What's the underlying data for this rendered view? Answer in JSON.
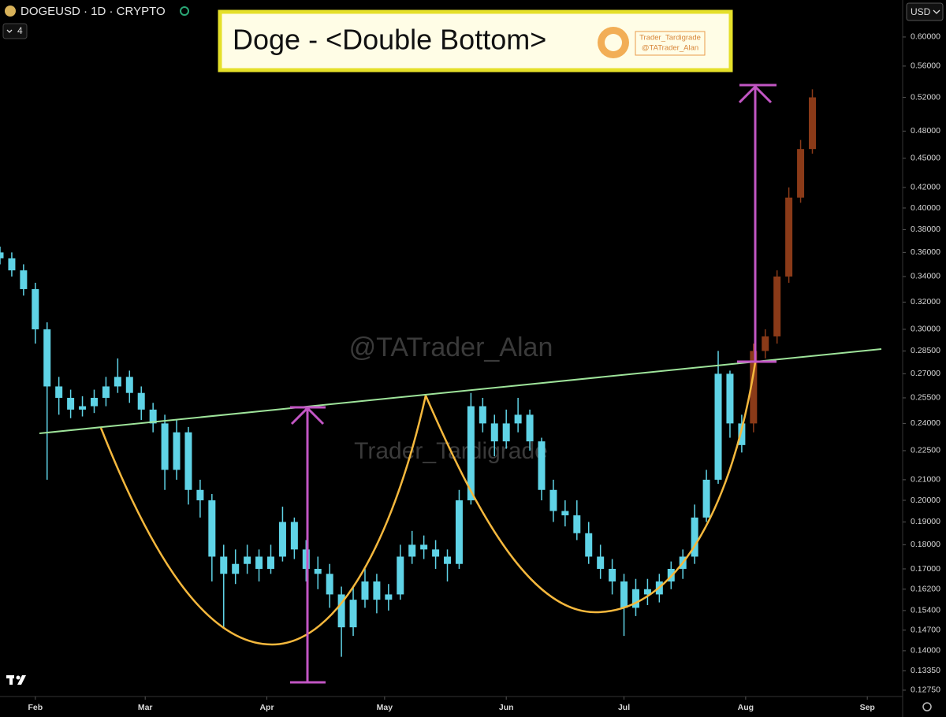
{
  "header": {
    "symbol": "DOGEUSD · 1D · CRYPTO",
    "indicator_count": "4",
    "currency": "USD"
  },
  "banner": {
    "title": "Doge - <Double Bottom>",
    "author": "Trader_Tardigrade",
    "handle": "@TATrader_Alan"
  },
  "watermarks": [
    "@TATrader_Alan",
    "Trader_Tardigrade"
  ],
  "chart_data": {
    "type": "candlestick",
    "log_scale": true,
    "xlim": [
      22,
      252
    ],
    "ylim": [
      0.1256,
      0.655
    ],
    "xticks": [
      {
        "value": 31,
        "label": "Feb"
      },
      {
        "value": 59,
        "label": "Mar"
      },
      {
        "value": 90,
        "label": "Apr"
      },
      {
        "value": 120,
        "label": "May"
      },
      {
        "value": 151,
        "label": "Jun"
      },
      {
        "value": 181,
        "label": "Jul"
      },
      {
        "value": 212,
        "label": "Aug"
      },
      {
        "value": 243,
        "label": "Sep"
      }
    ],
    "yticks": [
      {
        "value": 0.6,
        "label": "0.60000"
      },
      {
        "value": 0.56,
        "label": "0.56000"
      },
      {
        "value": 0.52,
        "label": "0.52000"
      },
      {
        "value": 0.48,
        "label": "0.48000"
      },
      {
        "value": 0.45,
        "label": "0.45000"
      },
      {
        "value": 0.42,
        "label": "0.42000"
      },
      {
        "value": 0.4,
        "label": "0.40000"
      },
      {
        "value": 0.38,
        "label": "0.38000"
      },
      {
        "value": 0.36,
        "label": "0.36000"
      },
      {
        "value": 0.34,
        "label": "0.34000"
      },
      {
        "value": 0.32,
        "label": "0.32000"
      },
      {
        "value": 0.3,
        "label": "0.30000"
      },
      {
        "value": 0.285,
        "label": "0.28500"
      },
      {
        "value": 0.27,
        "label": "0.27000"
      },
      {
        "value": 0.255,
        "label": "0.25500"
      },
      {
        "value": 0.24,
        "label": "0.24000"
      },
      {
        "value": 0.225,
        "label": "0.22500"
      },
      {
        "value": 0.21,
        "label": "0.21000"
      },
      {
        "value": 0.2,
        "label": "0.20000"
      },
      {
        "value": 0.19,
        "label": "0.19000"
      },
      {
        "value": 0.18,
        "label": "0.18000"
      },
      {
        "value": 0.17,
        "label": "0.17000"
      },
      {
        "value": 0.162,
        "label": "0.16200"
      },
      {
        "value": 0.154,
        "label": "0.15400"
      },
      {
        "value": 0.147,
        "label": "0.14700"
      },
      {
        "value": 0.14,
        "label": "0.14000"
      },
      {
        "value": 0.1335,
        "label": "0.13350"
      },
      {
        "value": 0.1275,
        "label": "0.12750"
      }
    ],
    "series": [
      {
        "color": "#5fd3e6",
        "x": [
          22,
          25,
          28,
          31,
          34,
          37,
          40,
          43,
          46,
          49,
          52,
          55,
          58,
          61,
          64,
          67,
          70,
          73,
          76,
          79,
          82,
          85,
          88,
          91,
          94,
          97,
          100,
          103,
          106,
          109,
          112,
          115,
          118,
          121,
          124,
          127,
          130,
          133,
          136,
          139,
          142,
          145,
          148,
          151,
          154,
          157,
          160,
          163,
          166,
          169,
          172,
          175,
          178,
          181,
          184,
          187,
          190,
          193,
          196,
          199,
          202,
          205,
          208,
          211
        ],
        "open": [
          0.36,
          0.355,
          0.345,
          0.33,
          0.3,
          0.262,
          0.255,
          0.248,
          0.25,
          0.255,
          0.262,
          0.268,
          0.258,
          0.248,
          0.24,
          0.215,
          0.235,
          0.205,
          0.2,
          0.175,
          0.168,
          0.172,
          0.175,
          0.17,
          0.175,
          0.19,
          0.178,
          0.17,
          0.168,
          0.16,
          0.148,
          0.158,
          0.165,
          0.158,
          0.16,
          0.175,
          0.18,
          0.178,
          0.175,
          0.172,
          0.2,
          0.25,
          0.24,
          0.23,
          0.24,
          0.245,
          0.23,
          0.205,
          0.195,
          0.193,
          0.185,
          0.175,
          0.17,
          0.165,
          0.155,
          0.162,
          0.16,
          0.165,
          0.17,
          0.175,
          0.192,
          0.21,
          0.27,
          0.24
        ],
        "high": [
          0.365,
          0.36,
          0.35,
          0.335,
          0.305,
          0.268,
          0.26,
          0.256,
          0.26,
          0.268,
          0.28,
          0.272,
          0.262,
          0.252,
          0.245,
          0.242,
          0.238,
          0.21,
          0.203,
          0.18,
          0.178,
          0.18,
          0.178,
          0.18,
          0.197,
          0.192,
          0.182,
          0.175,
          0.172,
          0.163,
          0.163,
          0.17,
          0.168,
          0.164,
          0.18,
          0.186,
          0.184,
          0.182,
          0.178,
          0.205,
          0.258,
          0.255,
          0.245,
          0.248,
          0.255,
          0.248,
          0.232,
          0.21,
          0.2,
          0.2,
          0.19,
          0.18,
          0.174,
          0.168,
          0.166,
          0.166,
          0.168,
          0.173,
          0.178,
          0.198,
          0.215,
          0.285,
          0.272,
          0.245
        ],
        "low": [
          0.35,
          0.34,
          0.325,
          0.29,
          0.21,
          0.245,
          0.243,
          0.244,
          0.246,
          0.25,
          0.258,
          0.252,
          0.242,
          0.235,
          0.205,
          0.21,
          0.198,
          0.192,
          0.165,
          0.148,
          0.164,
          0.168,
          0.165,
          0.168,
          0.173,
          0.174,
          0.165,
          0.162,
          0.155,
          0.138,
          0.145,
          0.155,
          0.153,
          0.154,
          0.158,
          0.172,
          0.174,
          0.17,
          0.165,
          0.17,
          0.198,
          0.235,
          0.222,
          0.226,
          0.235,
          0.225,
          0.2,
          0.19,
          0.188,
          0.182,
          0.172,
          0.166,
          0.16,
          0.145,
          0.152,
          0.156,
          0.157,
          0.162,
          0.166,
          0.172,
          0.19,
          0.208,
          0.232,
          0.224
        ],
        "close": [
          0.355,
          0.345,
          0.33,
          0.3,
          0.262,
          0.255,
          0.248,
          0.25,
          0.255,
          0.262,
          0.268,
          0.258,
          0.248,
          0.24,
          0.215,
          0.235,
          0.205,
          0.2,
          0.175,
          0.168,
          0.172,
          0.175,
          0.17,
          0.175,
          0.19,
          0.178,
          0.17,
          0.168,
          0.16,
          0.148,
          0.158,
          0.165,
          0.158,
          0.16,
          0.175,
          0.18,
          0.178,
          0.175,
          0.172,
          0.2,
          0.25,
          0.24,
          0.23,
          0.24,
          0.245,
          0.23,
          0.205,
          0.195,
          0.193,
          0.185,
          0.175,
          0.17,
          0.165,
          0.155,
          0.162,
          0.16,
          0.165,
          0.17,
          0.175,
          0.192,
          0.21,
          0.27,
          0.24,
          0.228
        ]
      },
      {
        "color": "#8a3a18",
        "x": [
          214,
          217,
          220,
          223,
          226,
          229
        ],
        "open": [
          0.24,
          0.285,
          0.295,
          0.34,
          0.41,
          0.46
        ],
        "high": [
          0.29,
          0.3,
          0.345,
          0.42,
          0.47,
          0.53
        ],
        "low": [
          0.235,
          0.28,
          0.29,
          0.335,
          0.405,
          0.455
        ],
        "close": [
          0.285,
          0.295,
          0.34,
          0.41,
          0.46,
          0.52
        ]
      }
    ]
  }
}
